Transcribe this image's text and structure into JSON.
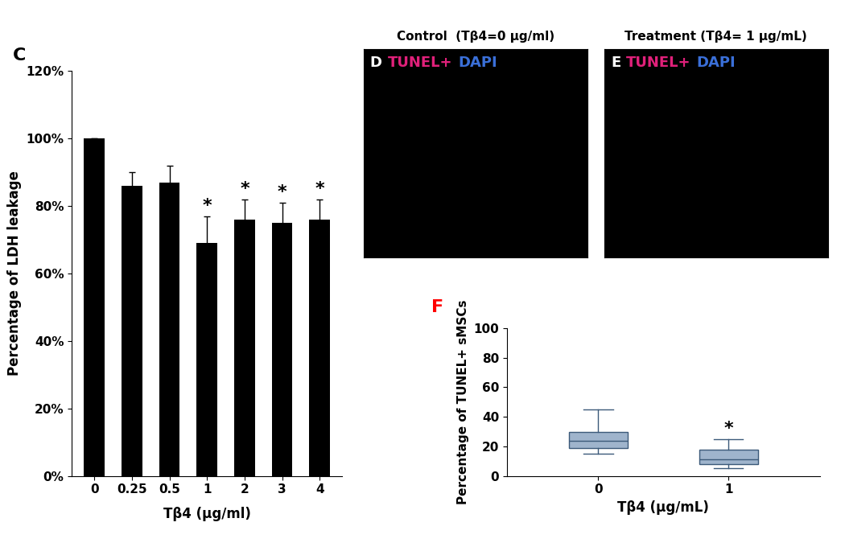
{
  "chart_data": [
    {
      "type": "bar",
      "panel_label": "C",
      "categories": [
        "0",
        "0.25",
        "0.5",
        "1",
        "2",
        "3",
        "4"
      ],
      "values": [
        100,
        86,
        87,
        69,
        76,
        75,
        76
      ],
      "errors": [
        0,
        4,
        5,
        8,
        6,
        6,
        6
      ],
      "significance": [
        null,
        null,
        null,
        "*",
        "*",
        "*",
        "*"
      ],
      "color": "#000000",
      "x_label": "Tβ4 (μg/ml)",
      "y_label": "Percentage of LDH leakage",
      "ylim": [
        0,
        120
      ],
      "yticks": [
        {
          "value": 0,
          "label": "0%"
        },
        {
          "value": 20,
          "label": "20%"
        },
        {
          "value": 40,
          "label": "40%"
        },
        {
          "value": 60,
          "label": "60%"
        },
        {
          "value": 80,
          "label": "80%"
        },
        {
          "value": 100,
          "label": "100%"
        },
        {
          "value": 120,
          "label": "120%"
        }
      ]
    },
    {
      "type": "image",
      "panel_label": "D",
      "title": "Control  (Tβ4=0 μg/ml)",
      "labels": [
        {
          "text": "TUNEL+",
          "color": "#e0207a"
        },
        {
          "text": "DAPI",
          "color": "#3a6fd8"
        }
      ]
    },
    {
      "type": "image",
      "panel_label": "E",
      "title": "Treatment (Tβ4= 1 μg/mL)",
      "labels": [
        {
          "text": "TUNEL+",
          "color": "#e0207a"
        },
        {
          "text": "DAPI",
          "color": "#3a6fd8"
        }
      ]
    },
    {
      "type": "box",
      "panel_label": "F",
      "categories": [
        "0",
        "1"
      ],
      "boxes": [
        {
          "whislo": 15,
          "q1": 19,
          "med": 24,
          "q3": 30,
          "whishi": 45
        },
        {
          "whislo": 5,
          "q1": 8,
          "med": 11,
          "q3": 18,
          "whishi": 25
        }
      ],
      "significance": [
        null,
        "*"
      ],
      "color": "#9fb4cc",
      "x_label": "Tβ4 (μg/mL)",
      "y_label": "Percentage of TUNEL+ sMSCs",
      "ylim": [
        0,
        100
      ],
      "yticks": [
        0,
        20,
        40,
        60,
        80,
        100
      ]
    }
  ]
}
